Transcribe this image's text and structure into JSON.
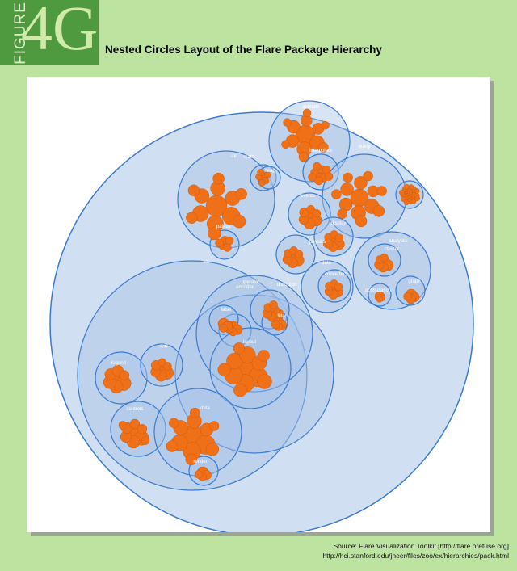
{
  "figure": {
    "word": "FIGURE",
    "number": "4G"
  },
  "title": "Nested Circles Layout of the Flare Package Hierarchy",
  "source": {
    "line1": "Source: Flare Visualization Toolkit [http://flare.prefuse.org]",
    "line2": "http://hci.stanford.edu/jheer/files/zoo/ex/hierarchies/pack.html"
  },
  "colors": {
    "background": "#bde3a0",
    "badge": "#4f9a3e",
    "leaf": "#f07018",
    "package_fill": "#a9c4e6",
    "package_stroke": "#3b7bd0"
  },
  "labels": {
    "root": "flare",
    "animate": "animate",
    "interpolate": "interpolate",
    "query": "query",
    "methods": "methods",
    "util": "util",
    "math": "math",
    "palette": "palette",
    "heap": "heap",
    "events": "events",
    "display": "display",
    "physics": "physics",
    "data": "data",
    "converters": "converters",
    "analytics": "analytics",
    "cluster": "cluster",
    "graph": "graph",
    "optimization": "optimization",
    "vis": "vis",
    "operator": "operator",
    "encoder": "encoder",
    "distortion": "distortion",
    "label": "label",
    "filter": "filter",
    "layout": "layout",
    "legend": "legend",
    "axis": "axis",
    "controls": "controls",
    "vis_data": "data",
    "render": "render"
  }
}
